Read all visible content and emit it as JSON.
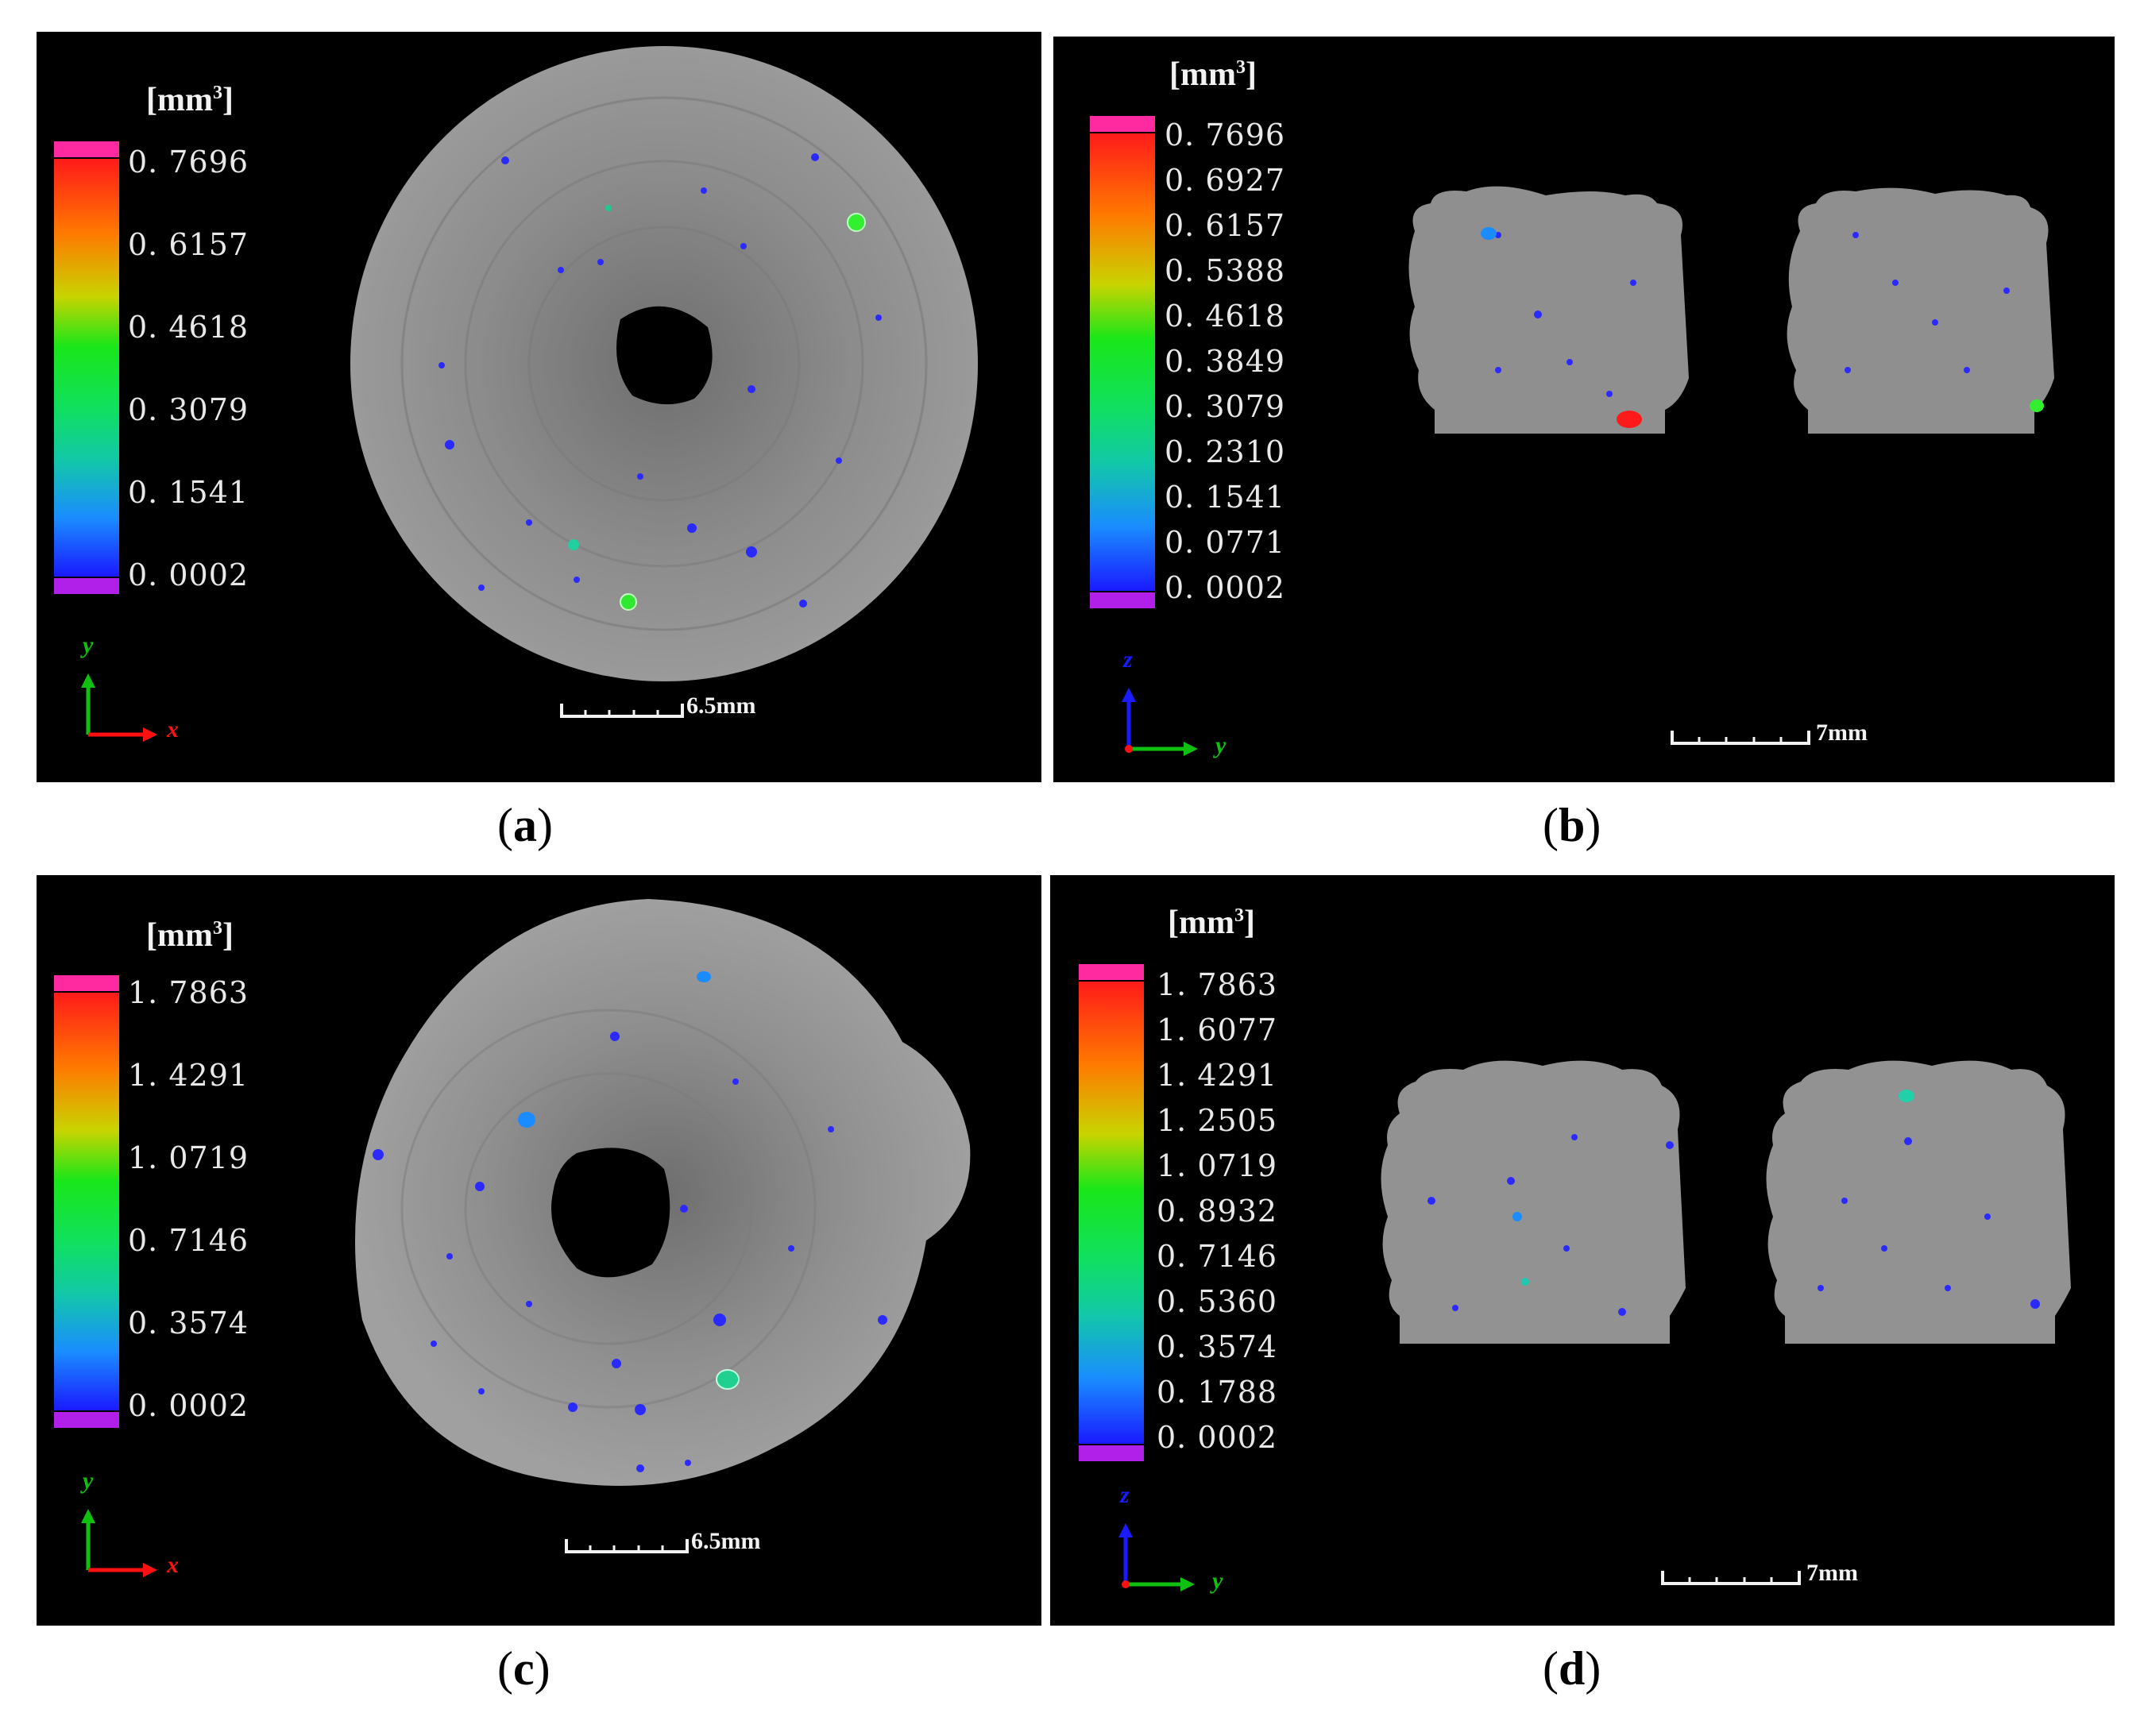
{
  "panels": [
    {
      "id": "a",
      "caption_open": "(",
      "caption_letter": "a",
      "caption_close": ")",
      "unit_main": "[mm",
      "unit_sup": "3",
      "unit_close": "]",
      "ticks": [
        "0. 7696",
        "0. 6157",
        "0. 4618",
        "0. 3079",
        "0. 1541",
        "0. 0002"
      ],
      "axis_vertical": "y",
      "axis_horizontal": "x",
      "scale_label": "6.5mm"
    },
    {
      "id": "b",
      "caption_open": "(",
      "caption_letter": "b",
      "caption_close": ")",
      "unit_main": "[mm",
      "unit_sup": "3",
      "unit_close": "]",
      "ticks": [
        "0. 7696",
        "0. 6927",
        "0. 6157",
        "0. 5388",
        "0. 4618",
        "0. 3849",
        "0. 3079",
        "0. 2310",
        "0. 1541",
        "0. 0771",
        "0. 0002"
      ],
      "axis_vertical": "z",
      "axis_horizontal": "y",
      "scale_label": "7mm"
    },
    {
      "id": "c",
      "caption_open": "(",
      "caption_letter": "c",
      "caption_close": ")",
      "unit_main": "[mm",
      "unit_sup": "3",
      "unit_close": "]",
      "ticks": [
        "1. 7863",
        "1. 4291",
        "1. 0719",
        "0. 7146",
        "0. 3574",
        "0. 0002"
      ],
      "axis_vertical": "y",
      "axis_horizontal": "x",
      "scale_label": "6.5mm"
    },
    {
      "id": "d",
      "caption_open": "(",
      "caption_letter": "d",
      "caption_close": ")",
      "unit_main": "[mm",
      "unit_sup": "3",
      "unit_close": "]",
      "ticks": [
        "1. 7863",
        "1. 6077",
        "1. 4291",
        "1. 2505",
        "1. 0719",
        "0. 8932",
        "0. 7146",
        "0. 5360",
        "0. 3574",
        "0. 1788",
        "0. 0002"
      ],
      "axis_vertical": "z",
      "axis_horizontal": "y",
      "scale_label": "7mm"
    }
  ],
  "colors": {
    "colorbar_top_cap": "#ff2aa0",
    "colorbar_bottom_cap": "#b020e8",
    "axis_green": "#10c010",
    "axis_red": "#ff1010",
    "axis_blue": "#1a1aff",
    "specimen_gray": "#8a8a8a"
  }
}
